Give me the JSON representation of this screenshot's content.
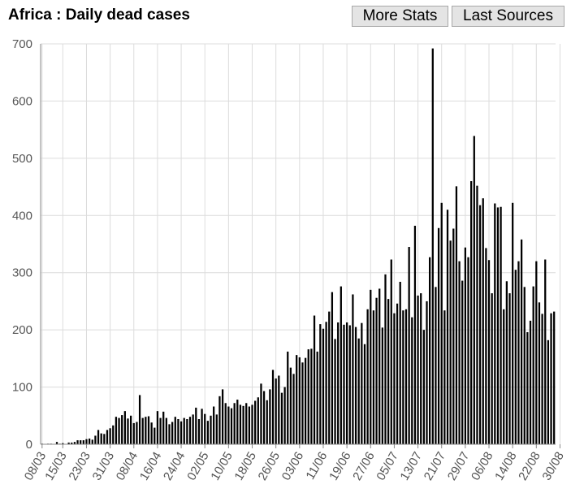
{
  "title": "Africa : Daily dead cases",
  "buttons": {
    "more_stats": "More Stats",
    "last_sources": "Last Sources"
  },
  "colors": {
    "bar": "#000000",
    "grid": "#dcdcdc",
    "axis": "#888888",
    "tick_text": "#555555"
  },
  "chart_data": {
    "type": "bar",
    "title": "Africa : Daily dead cases",
    "xlabel": "",
    "ylabel": "",
    "ylim": [
      0,
      700
    ],
    "yticks": [
      0,
      100,
      200,
      300,
      400,
      500,
      600,
      700
    ],
    "grid": true,
    "start_date": "08/03",
    "x_tick_labels": [
      "08/03",
      "15/03",
      "23/03",
      "31/03",
      "08/04",
      "16/04",
      "24/04",
      "02/05",
      "10/05",
      "18/05",
      "26/05",
      "03/06",
      "11/06",
      "19/06",
      "27/06",
      "05/07",
      "13/07",
      "21/07",
      "29/07",
      "06/08",
      "14/08",
      "22/08",
      "30/08"
    ],
    "x_tick_offsets": [
      0,
      7,
      15,
      23,
      31,
      39,
      47,
      55,
      63,
      71,
      79,
      87,
      95,
      103,
      111,
      119,
      127,
      135,
      143,
      151,
      159,
      167,
      175
    ],
    "values": [
      1,
      0,
      1,
      1,
      0,
      4,
      1,
      2,
      0,
      3,
      3,
      4,
      7,
      7,
      7,
      9,
      10,
      8,
      15,
      25,
      19,
      18,
      25,
      28,
      33,
      48,
      46,
      51,
      58,
      45,
      50,
      37,
      39,
      86,
      46,
      48,
      49,
      38,
      29,
      58,
      46,
      57,
      46,
      35,
      39,
      48,
      44,
      40,
      46,
      44,
      48,
      52,
      64,
      44,
      62,
      53,
      41,
      50,
      66,
      52,
      84,
      96,
      72,
      66,
      63,
      72,
      78,
      69,
      67,
      72,
      66,
      69,
      76,
      82,
      106,
      93,
      77,
      96,
      130,
      115,
      120,
      90,
      100,
      162,
      134,
      123,
      156,
      152,
      143,
      151,
      166,
      167,
      225,
      162,
      210,
      202,
      214,
      232,
      266,
      184,
      213,
      276,
      209,
      213,
      208,
      262,
      205,
      185,
      212,
      175,
      236,
      270,
      234,
      256,
      272,
      204,
      297,
      254,
      323,
      229,
      246,
      284,
      234,
      236,
      345,
      222,
      382,
      260,
      264,
      200,
      250,
      327,
      692,
      275,
      378,
      422,
      234,
      410,
      356,
      377,
      451,
      320,
      286,
      344,
      327,
      460,
      539,
      452,
      418,
      430,
      343,
      322,
      264,
      421,
      414,
      415,
      236,
      285,
      264,
      422,
      305,
      320,
      358,
      275,
      196,
      216,
      276,
      320,
      248,
      228,
      323,
      182,
      229,
      232
    ]
  }
}
